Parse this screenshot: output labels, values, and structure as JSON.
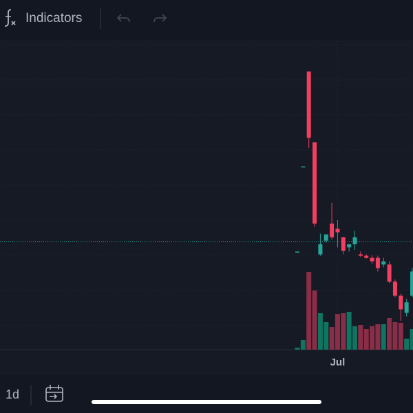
{
  "toolbar": {
    "indicators": "Indicators"
  },
  "bottom_bar": {
    "interval": "1d"
  },
  "chart_data": {
    "type": "candlestick",
    "categories": [
      null,
      null,
      null,
      null,
      null,
      null,
      null,
      "Jul",
      null,
      null,
      null,
      null,
      null,
      null,
      null,
      null,
      null,
      null,
      null,
      null,
      null
    ],
    "open": [
      21.0,
      45.3,
      72.4,
      52.2,
      20.2,
      24.1,
      29.0,
      27.5,
      25.1,
      22.2,
      23.1,
      20.2,
      19.8,
      19.2,
      19.2,
      17.3,
      17.3,
      12.4,
      8.4,
      3.5,
      8.4
    ],
    "high": [
      21.0,
      45.3,
      72.4,
      52.2,
      26.1,
      25.9,
      34.9,
      30.0,
      25.1,
      23.1,
      26.9,
      21.0,
      20.2,
      20.0,
      19.8,
      19.2,
      18.2,
      13.0,
      9.0,
      7.5,
      16.3
    ],
    "low": [
      21.0,
      45.3,
      50.6,
      28.0,
      19.8,
      23.5,
      24.5,
      22.2,
      20.2,
      21.0,
      21.5,
      19.5,
      19.0,
      17.5,
      15.3,
      16.5,
      12.0,
      8.0,
      1.2,
      2.5,
      8.0
    ],
    "close": [
      21.0,
      45.3,
      53.5,
      29.0,
      23.1,
      25.9,
      25.1,
      26.5,
      21.2,
      23.1,
      25.1,
      19.8,
      19.2,
      18.2,
      16.3,
      18.2,
      12.4,
      8.4,
      4.5,
      6.5,
      15.3
    ],
    "volume": [
      3,
      14,
      113,
      86,
      53,
      40,
      33,
      52,
      53,
      55,
      34,
      36,
      30,
      34,
      37,
      37,
      46,
      40,
      39,
      16,
      30
    ],
    "up_color": "#26a69a",
    "down_color": "#f23f61",
    "up_volume_color": "#0f7460",
    "down_volume_color": "#8a2d46",
    "ylim": [
      -7,
      81
    ],
    "yticks": [
      0,
      10,
      20,
      30,
      40,
      50,
      60,
      70,
      80
    ],
    "y2lim": [
      0,
      120
    ],
    "price_line": 23.9,
    "grid": true
  }
}
